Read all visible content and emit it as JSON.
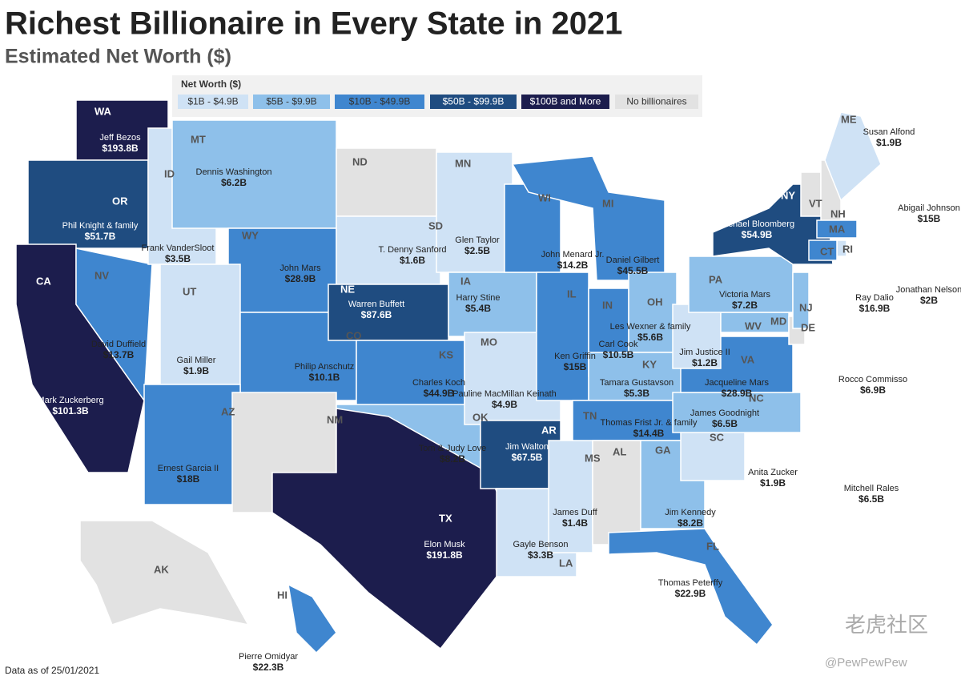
{
  "title": "Richest Billionaire in Every State in 2021",
  "subtitle": "Estimated Net Worth ($)",
  "legend": {
    "title": "Net Worth ($)",
    "items": [
      {
        "label": "$1B - $4.9B",
        "color": "#cfe2f5"
      },
      {
        "label": "$5B - $9.9B",
        "color": "#8ec0ea"
      },
      {
        "label": "$10B - $49.9B",
        "color": "#3f86cf"
      },
      {
        "label": "$50B - $99.9B",
        "color": "#1f4c80"
      },
      {
        "label": "$100B and More",
        "color": "#1c1d4d"
      },
      {
        "label": "No billionaires",
        "color": "#e2e2e2"
      }
    ]
  },
  "states": [
    {
      "abbr": "WA",
      "name": "Jeff Bezos",
      "worth": "$193.8B",
      "color": "#1c1d4d"
    },
    {
      "abbr": "OR",
      "name": "Phil Knight & family",
      "worth": "$51.7B",
      "color": "#1f4c80"
    },
    {
      "abbr": "CA",
      "name": "Mark Zuckerberg",
      "worth": "$101.3B",
      "color": "#1c1d4d"
    },
    {
      "abbr": "NV",
      "name": "David Duffield",
      "worth": "$13.7B",
      "color": "#3f86cf"
    },
    {
      "abbr": "ID",
      "name": "Frank VanderSloot",
      "worth": "$3.5B",
      "color": "#cfe2f5"
    },
    {
      "abbr": "MT",
      "name": "Dennis Washington",
      "worth": "$6.2B",
      "color": "#8ec0ea"
    },
    {
      "abbr": "WY",
      "name": "John Mars",
      "worth": "$28.9B",
      "color": "#3f86cf"
    },
    {
      "abbr": "UT",
      "name": "Gail Miller",
      "worth": "$1.9B",
      "color": "#cfe2f5"
    },
    {
      "abbr": "CO",
      "name": "Philip Anschutz",
      "worth": "$10.1B",
      "color": "#3f86cf"
    },
    {
      "abbr": "AZ",
      "name": "Ernest Garcia II",
      "worth": "$18B",
      "color": "#3f86cf"
    },
    {
      "abbr": "NM",
      "color": "#e2e2e2"
    },
    {
      "abbr": "ND",
      "color": "#e2e2e2"
    },
    {
      "abbr": "SD",
      "name": "T. Denny Sanford",
      "worth": "$1.6B",
      "color": "#cfe2f5"
    },
    {
      "abbr": "NE",
      "name": "Warren Buffett",
      "worth": "$87.6B",
      "color": "#1f4c80"
    },
    {
      "abbr": "KS",
      "name": "Charles Koch",
      "worth": "$44.9B",
      "color": "#3f86cf"
    },
    {
      "abbr": "OK",
      "name": "Tom & Judy Love",
      "worth": "$8.2B",
      "color": "#8ec0ea"
    },
    {
      "abbr": "TX",
      "name": "Elon Musk",
      "worth": "$191.8B",
      "color": "#1c1d4d"
    },
    {
      "abbr": "MN",
      "name": "Glen Taylor",
      "worth": "$2.5B",
      "color": "#cfe2f5"
    },
    {
      "abbr": "IA",
      "name": "Harry Stine",
      "worth": "$5.4B",
      "color": "#8ec0ea"
    },
    {
      "abbr": "MO",
      "name": "Pauline MacMillan Keinath",
      "worth": "$4.9B",
      "color": "#cfe2f5"
    },
    {
      "abbr": "AR",
      "name": "Jim Walton",
      "worth": "$67.5B",
      "color": "#1f4c80"
    },
    {
      "abbr": "LA",
      "name": "Gayle Benson",
      "worth": "$3.3B",
      "color": "#cfe2f5"
    },
    {
      "abbr": "MS",
      "name": "James Duff",
      "worth": "$1.4B",
      "color": "#cfe2f5"
    },
    {
      "abbr": "WI",
      "name": "John Menard Jr.",
      "worth": "$14.2B",
      "color": "#3f86cf"
    },
    {
      "abbr": "IL",
      "name": "Ken Griffin",
      "worth": "$15B",
      "color": "#3f86cf"
    },
    {
      "abbr": "MI",
      "name": "Daniel Gilbert",
      "worth": "$45.5B",
      "color": "#3f86cf"
    },
    {
      "abbr": "IN",
      "name": "Carl Cook",
      "worth": "$10.5B",
      "color": "#3f86cf"
    },
    {
      "abbr": "OH",
      "name": "Les Wexner & family",
      "worth": "$5.6B",
      "color": "#8ec0ea"
    },
    {
      "abbr": "KY",
      "name": "Tamara Gustavson",
      "worth": "$5.3B",
      "color": "#8ec0ea"
    },
    {
      "abbr": "TN",
      "name": "Thomas Frist Jr. & family",
      "worth": "$14.4B",
      "color": "#3f86cf"
    },
    {
      "abbr": "AL",
      "color": "#e2e2e2"
    },
    {
      "abbr": "GA",
      "name": "Jim Kennedy",
      "worth": "$8.2B",
      "color": "#8ec0ea"
    },
    {
      "abbr": "FL",
      "name": "Thomas Peterffy",
      "worth": "$22.9B",
      "color": "#3f86cf"
    },
    {
      "abbr": "SC",
      "name": "Anita Zucker",
      "worth": "$1.9B",
      "color": "#cfe2f5"
    },
    {
      "abbr": "NC",
      "name": "James Goodnight",
      "worth": "$6.5B",
      "color": "#8ec0ea"
    },
    {
      "abbr": "VA",
      "name": "Jacqueline Mars",
      "worth": "$28.9B",
      "color": "#3f86cf"
    },
    {
      "abbr": "WV",
      "name": "Jim Justice II",
      "worth": "$1.2B",
      "color": "#cfe2f5"
    },
    {
      "abbr": "MD",
      "name": "Mitchell Rales",
      "worth": "$6.5B",
      "color": "#8ec0ea"
    },
    {
      "abbr": "DE",
      "color": "#e2e2e2"
    },
    {
      "abbr": "PA",
      "name": "Victoria Mars",
      "worth": "$7.2B",
      "color": "#8ec0ea"
    },
    {
      "abbr": "NJ",
      "name": "Rocco Commisso",
      "worth": "$6.9B",
      "color": "#8ec0ea"
    },
    {
      "abbr": "NY",
      "name": "Michael Bloomberg",
      "worth": "$54.9B",
      "color": "#1f4c80"
    },
    {
      "abbr": "VT",
      "color": "#e2e2e2"
    },
    {
      "abbr": "NH",
      "color": "#e2e2e2"
    },
    {
      "abbr": "ME",
      "name": "Susan Alfond",
      "worth": "$1.9B",
      "color": "#cfe2f5"
    },
    {
      "abbr": "MA",
      "name": "Abigail Johnson",
      "worth": "$15B",
      "color": "#3f86cf"
    },
    {
      "abbr": "RI",
      "name": "Jonathan Nelson",
      "worth": "$2B",
      "color": "#cfe2f5"
    },
    {
      "abbr": "CT",
      "name": "Ray Dalio",
      "worth": "$16.9B",
      "color": "#3f86cf"
    },
    {
      "abbr": "AK",
      "color": "#e2e2e2"
    },
    {
      "abbr": "HI",
      "name": "Pierre Omidyar",
      "worth": "$22.3B",
      "color": "#3f86cf"
    }
  ],
  "footer": {
    "note": "Data as of 25/01/2021",
    "credit": "@PewPewPew",
    "watermark": "老虎社区"
  }
}
